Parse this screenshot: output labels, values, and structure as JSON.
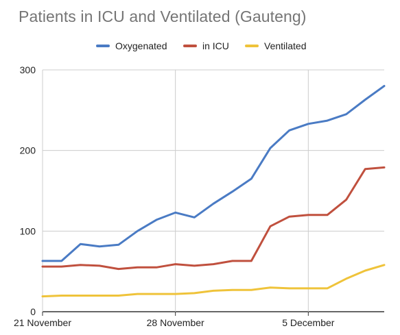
{
  "chart_data": {
    "type": "line",
    "title": "Patients in ICU and Ventilated (Gauteng)",
    "xlabel": "",
    "ylabel": "",
    "ylim": [
      0,
      300
    ],
    "yticks": [
      0,
      100,
      200,
      300
    ],
    "x_tick_labels": [
      {
        "index": 0,
        "label": "21 November"
      },
      {
        "index": 7,
        "label": "28 November"
      },
      {
        "index": 14,
        "label": "5 December"
      }
    ],
    "grid": true,
    "legend_position": "top",
    "series": [
      {
        "name": "Oxygenated",
        "color": "#4a7bc4",
        "values": [
          63,
          63,
          84,
          81,
          83,
          100,
          114,
          123,
          117,
          134,
          149,
          165,
          203,
          225,
          233,
          237,
          245,
          263,
          280
        ]
      },
      {
        "name": "in ICU",
        "color": "#c0503e",
        "values": [
          56,
          56,
          58,
          57,
          53,
          55,
          55,
          59,
          57,
          59,
          63,
          63,
          106,
          118,
          120,
          120,
          139,
          177,
          179
        ]
      },
      {
        "name": "Ventilated",
        "color": "#efc33a",
        "values": [
          19,
          20,
          20,
          20,
          20,
          22,
          22,
          22,
          23,
          26,
          27,
          27,
          30,
          29,
          29,
          29,
          41,
          51,
          58
        ]
      }
    ]
  }
}
